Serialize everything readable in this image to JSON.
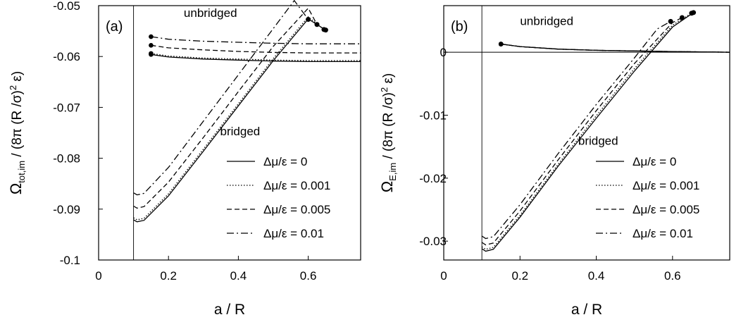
{
  "chart_data": [
    {
      "type": "line",
      "panel_label": "(a)",
      "xlabel": "a / R",
      "ylabel": {
        "base": "Ω",
        "sub": "tot,im",
        "rest": " / (8π (R /σ)",
        "sup": "2",
        "tail": " ε)"
      },
      "xlim": [
        0,
        0.75
      ],
      "ylim": [
        -0.1,
        -0.05
      ],
      "xticks": [
        0,
        0.2,
        0.4,
        0.6
      ],
      "xtick_labels": [
        "0",
        "0.2",
        "0.4",
        "0.6"
      ],
      "yticks": [
        -0.1,
        -0.09,
        -0.08,
        -0.07,
        -0.06,
        -0.05
      ],
      "ytick_labels": [
        "-0.1",
        "-0.09",
        "-0.08",
        "-0.07",
        "-0.06",
        "-0.05"
      ],
      "vline_x": 0.1,
      "annotations": [
        {
          "text": "unbridged",
          "x": 0.32,
          "y": -0.0522
        },
        {
          "text": "bridged",
          "x": 0.405,
          "y": -0.0755
        }
      ],
      "legend_position": "lower-right",
      "series": [
        {
          "name": "Δμ/ε = 0",
          "dash": "solid",
          "unbridged": [
            [
              0.15,
              -0.0596
            ],
            [
              0.2,
              -0.0601
            ],
            [
              0.3,
              -0.0605
            ],
            [
              0.4,
              -0.0607
            ],
            [
              0.5,
              -0.0609
            ],
            [
              0.6,
              -0.061
            ],
            [
              0.75,
              -0.061
            ]
          ],
          "bridged": [
            [
              0.1,
              -0.0921
            ],
            [
              0.11,
              -0.0925
            ],
            [
              0.13,
              -0.0922
            ],
            [
              0.2,
              -0.0874
            ],
            [
              0.3,
              -0.0786
            ],
            [
              0.4,
              -0.0697
            ],
            [
              0.5,
              -0.0608
            ],
            [
              0.6,
              -0.0526
            ],
            [
              0.65,
              -0.0548
            ]
          ],
          "end_marker": [
            0.65,
            -0.0548
          ]
        },
        {
          "name": "Δμ/ε = 0.001",
          "dash": "dotted",
          "unbridged": [
            [
              0.15,
              -0.0594
            ],
            [
              0.2,
              -0.0599
            ],
            [
              0.3,
              -0.0603
            ],
            [
              0.4,
              -0.0605
            ],
            [
              0.5,
              -0.0607
            ],
            [
              0.6,
              -0.0608
            ],
            [
              0.75,
              -0.0608
            ]
          ],
          "bridged": [
            [
              0.1,
              -0.0917
            ],
            [
              0.11,
              -0.0921
            ],
            [
              0.13,
              -0.0918
            ],
            [
              0.2,
              -0.087
            ],
            [
              0.3,
              -0.0782
            ],
            [
              0.4,
              -0.0693
            ],
            [
              0.5,
              -0.0604
            ],
            [
              0.6,
              -0.0522
            ],
            [
              0.645,
              -0.0547
            ]
          ],
          "end_marker": [
            0.645,
            -0.0547
          ]
        },
        {
          "name": "Δμ/ε = 0.005",
          "dash": "dashed",
          "unbridged": [
            [
              0.15,
              -0.0578
            ],
            [
              0.2,
              -0.0583
            ],
            [
              0.3,
              -0.0587
            ],
            [
              0.4,
              -0.059
            ],
            [
              0.5,
              -0.0592
            ],
            [
              0.6,
              -0.0593
            ],
            [
              0.75,
              -0.0593
            ]
          ],
          "bridged": [
            [
              0.1,
              -0.0894
            ],
            [
              0.11,
              -0.0898
            ],
            [
              0.13,
              -0.0895
            ],
            [
              0.2,
              -0.0847
            ],
            [
              0.3,
              -0.0759
            ],
            [
              0.4,
              -0.0669
            ],
            [
              0.5,
              -0.058
            ],
            [
              0.6,
              -0.0505
            ],
            [
              0.625,
              -0.0537
            ]
          ],
          "end_marker": [
            0.625,
            -0.0537
          ]
        },
        {
          "name": "Δμ/ε = 0.01",
          "dash": "dashdot",
          "unbridged": [
            [
              0.15,
              -0.0561
            ],
            [
              0.2,
              -0.0566
            ],
            [
              0.3,
              -0.057
            ],
            [
              0.4,
              -0.0572
            ],
            [
              0.5,
              -0.0574
            ],
            [
              0.6,
              -0.0575
            ],
            [
              0.75,
              -0.0575
            ]
          ],
          "bridged": [
            [
              0.1,
              -0.0868
            ],
            [
              0.11,
              -0.0872
            ],
            [
              0.13,
              -0.0869
            ],
            [
              0.2,
              -0.0818
            ],
            [
              0.3,
              -0.0727
            ],
            [
              0.4,
              -0.0636
            ],
            [
              0.5,
              -0.0545
            ],
            [
              0.56,
              -0.049
            ],
            [
              0.6,
              -0.0527
            ]
          ],
          "end_marker": [
            0.6,
            -0.0527
          ]
        }
      ]
    },
    {
      "type": "line",
      "panel_label": "(b)",
      "xlabel": "a / R",
      "ylabel": {
        "base": "Ω",
        "sub": "E,im",
        "rest": " / (8π (R /σ)",
        "sup": "2",
        "tail": " ε)"
      },
      "xlim": [
        0,
        0.75
      ],
      "ylim": [
        -0.033,
        0.0074
      ],
      "xticks": [
        0,
        0.2,
        0.4,
        0.6
      ],
      "xtick_labels": [
        "0",
        "0.2",
        "0.4",
        "0.6"
      ],
      "yticks": [
        -0.03,
        -0.02,
        -0.01,
        0
      ],
      "ytick_labels": [
        "-0.03",
        "-0.02",
        "-0.01",
        "0"
      ],
      "vline_x": 0.1,
      "hline_y": 0,
      "annotations": [
        {
          "text": "unbridged",
          "x": 0.27,
          "y": 0.0043
        },
        {
          "text": "bridged",
          "x": 0.405,
          "y": -0.0147
        }
      ],
      "legend_position": "lower-right",
      "series": [
        {
          "name": "Δμ/ε = 0",
          "dash": "solid",
          "unbridged": [
            [
              0.15,
              0.0013
            ],
            [
              0.2,
              0.0009
            ],
            [
              0.3,
              0.0005
            ],
            [
              0.4,
              0.0003
            ],
            [
              0.5,
              0.0002
            ],
            [
              0.6,
              0.0001
            ],
            [
              0.75,
              0.0
            ]
          ],
          "bridged": [
            [
              0.1,
              -0.0312
            ],
            [
              0.11,
              -0.0316
            ],
            [
              0.13,
              -0.0313
            ],
            [
              0.2,
              -0.0262
            ],
            [
              0.3,
              -0.0181
            ],
            [
              0.4,
              -0.0105
            ],
            [
              0.5,
              -0.003
            ],
            [
              0.6,
              0.004
            ],
            [
              0.655,
              0.0063
            ]
          ],
          "end_marker": [
            0.655,
            0.0063
          ]
        },
        {
          "name": "Δμ/ε = 0.001",
          "dash": "dotted",
          "unbridged": [
            [
              0.15,
              0.0013
            ],
            [
              0.2,
              0.0009
            ],
            [
              0.3,
              0.0005
            ],
            [
              0.4,
              0.0003
            ],
            [
              0.5,
              0.0002
            ],
            [
              0.6,
              0.0001
            ],
            [
              0.75,
              0.0
            ]
          ],
          "bridged": [
            [
              0.1,
              -0.0309
            ],
            [
              0.11,
              -0.0313
            ],
            [
              0.13,
              -0.031
            ],
            [
              0.2,
              -0.0259
            ],
            [
              0.3,
              -0.0178
            ],
            [
              0.4,
              -0.0101
            ],
            [
              0.5,
              -0.0026
            ],
            [
              0.6,
              0.0043
            ],
            [
              0.65,
              0.0062
            ]
          ],
          "end_marker": [
            0.65,
            0.0062
          ]
        },
        {
          "name": "Δμ/ε = 0.005",
          "dash": "dashed",
          "unbridged": [
            [
              0.15,
              0.0013
            ],
            [
              0.2,
              0.0009
            ],
            [
              0.3,
              0.0005
            ],
            [
              0.4,
              0.0003
            ],
            [
              0.5,
              0.0002
            ],
            [
              0.6,
              0.0001
            ],
            [
              0.75,
              0.0
            ]
          ],
          "bridged": [
            [
              0.1,
              -0.0302
            ],
            [
              0.11,
              -0.0306
            ],
            [
              0.13,
              -0.0303
            ],
            [
              0.2,
              -0.0252
            ],
            [
              0.3,
              -0.0171
            ],
            [
              0.4,
              -0.0093
            ],
            [
              0.5,
              -0.0018
            ],
            [
              0.6,
              0.0047
            ],
            [
              0.625,
              0.0055
            ]
          ],
          "end_marker": [
            0.625,
            0.0055
          ]
        },
        {
          "name": "Δμ/ε = 0.01",
          "dash": "dashdot",
          "unbridged": [
            [
              0.15,
              0.0013
            ],
            [
              0.2,
              0.0009
            ],
            [
              0.3,
              0.0005
            ],
            [
              0.4,
              0.0003
            ],
            [
              0.5,
              0.0002
            ],
            [
              0.6,
              0.0001
            ],
            [
              0.75,
              0.0
            ]
          ],
          "bridged": [
            [
              0.1,
              -0.0292
            ],
            [
              0.11,
              -0.0296
            ],
            [
              0.13,
              -0.0293
            ],
            [
              0.2,
              -0.0242
            ],
            [
              0.3,
              -0.0161
            ],
            [
              0.4,
              -0.0083
            ],
            [
              0.5,
              -0.0009
            ],
            [
              0.56,
              0.0037
            ],
            [
              0.595,
              0.0049
            ]
          ],
          "end_marker": [
            0.595,
            0.0049
          ]
        }
      ]
    }
  ]
}
